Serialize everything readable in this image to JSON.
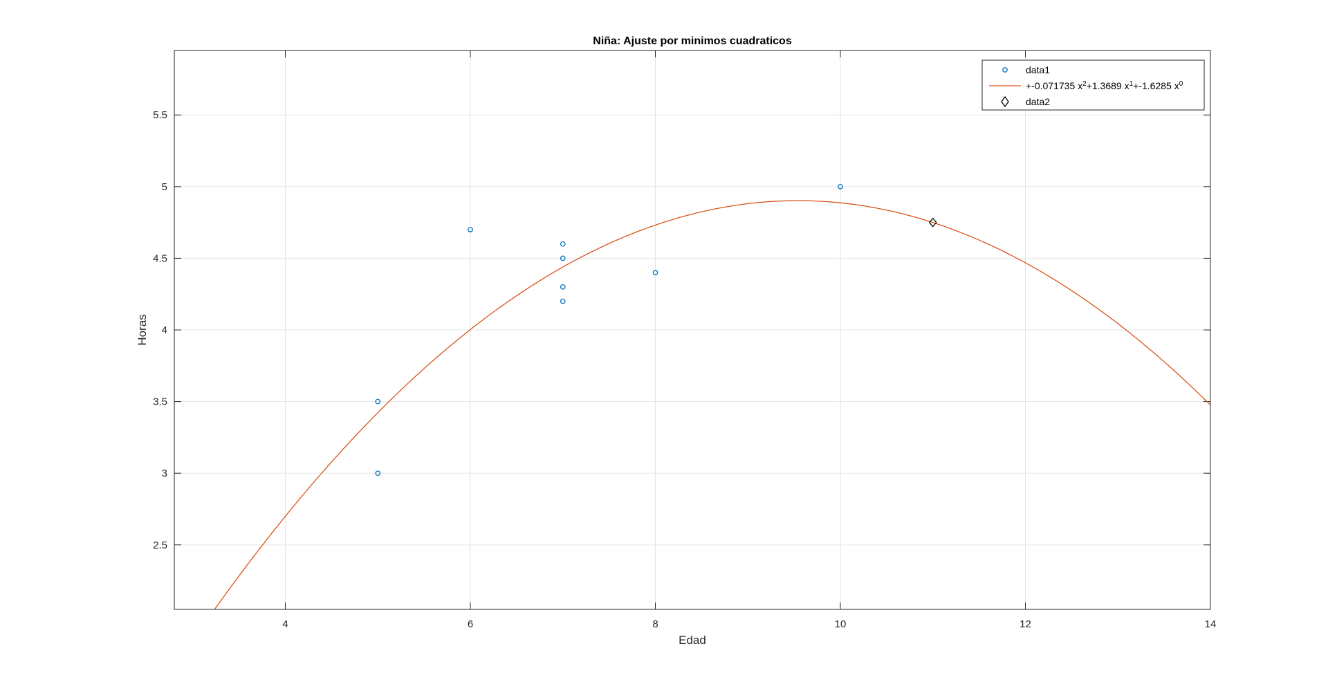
{
  "chart_data": {
    "type": "scatter",
    "title": "Niña: Ajuste por minimos cuadraticos",
    "xlabel": "Edad",
    "ylabel": "Horas",
    "xlim": [
      2.8,
      14
    ],
    "ylim": [
      2.05,
      5.95
    ],
    "xticks": [
      4,
      6,
      8,
      10,
      12,
      14
    ],
    "yticks": [
      2.5,
      3,
      3.5,
      4,
      4.5,
      5,
      5.5
    ],
    "xtick_labels": [
      "4",
      "6",
      "8",
      "10",
      "12",
      "14"
    ],
    "ytick_labels": [
      "2.5",
      "3",
      "3.5",
      "4",
      "4.5",
      "5",
      "5.5"
    ],
    "grid": true,
    "legend_position": "top-right",
    "colors": {
      "data1": "#0072BD",
      "fit": "#D95319",
      "data2": "#000000",
      "grid": "#e5e5e5",
      "axes": "#262626"
    },
    "series": [
      {
        "name": "data1",
        "kind": "scatter",
        "marker": "circle",
        "points": [
          [
            5,
            3.5
          ],
          [
            5,
            3.0
          ],
          [
            6,
            4.7
          ],
          [
            7,
            4.6
          ],
          [
            7,
            4.5
          ],
          [
            7,
            4.3
          ],
          [
            7,
            4.2
          ],
          [
            8,
            4.4
          ],
          [
            10,
            5.0
          ]
        ]
      },
      {
        "name": "fit",
        "kind": "line",
        "legend_parts": [
          "+-0.071735 x",
          "2",
          "+1.3689 x",
          "1",
          "+-1.6285 x",
          "0"
        ],
        "coefficients": [
          -0.071735,
          1.3689,
          -1.6285
        ],
        "x_range": [
          2.8,
          14
        ]
      },
      {
        "name": "data2",
        "kind": "scatter",
        "marker": "diamond",
        "points": [
          [
            11,
            4.75
          ]
        ]
      }
    ],
    "legend": [
      {
        "label": "data1"
      },
      {
        "label": "+-0.071735 x²+1.3689 x¹+-1.6285 x⁰"
      },
      {
        "label": "data2"
      }
    ]
  }
}
